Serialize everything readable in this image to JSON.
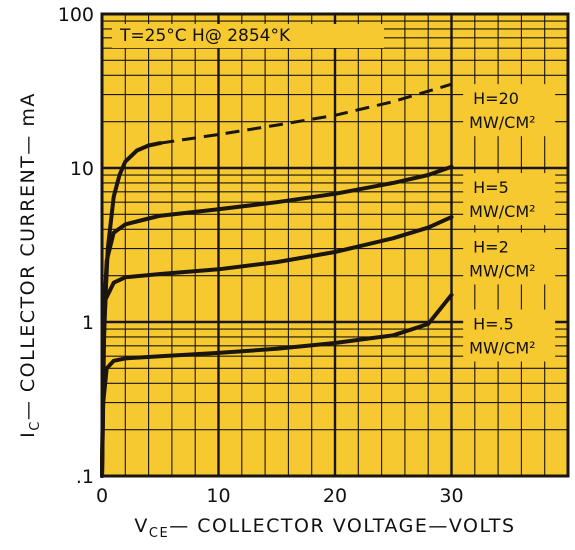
{
  "chart_data": {
    "type": "line",
    "title": "",
    "annotation": "T=25°C   H@ 2854°K",
    "xlabel": "VCE — COLLECTOR VOLTAGE—VOLTS",
    "xlabel_main": "V",
    "xlabel_sub": "CE",
    "xlabel_rest": "— COLLECTOR VOLTAGE—VOLTS",
    "ylabel": "IC— COLLECTOR CURRENT— mA",
    "ylabel_main": "I",
    "ylabel_sub": "C",
    "ylabel_rest": "— COLLECTOR CURRENT— mA",
    "xlim": [
      0,
      40
    ],
    "ylim": [
      0.1,
      100
    ],
    "yscale": "log",
    "grid": true,
    "x_ticks": [
      {
        "value": 0,
        "label": "0"
      },
      {
        "value": 10,
        "label": "10"
      },
      {
        "value": 20,
        "label": "20"
      },
      {
        "value": 30,
        "label": "30"
      }
    ],
    "y_ticks": [
      {
        "value": 0.1,
        "label": ".1"
      },
      {
        "value": 1,
        "label": "1"
      },
      {
        "value": 10,
        "label": "10"
      },
      {
        "value": 100,
        "label": "100"
      }
    ],
    "series": [
      {
        "name": "H=20 MW/CM²",
        "line1": "H=20",
        "line2": "MW/CM²",
        "label_at": [
          31,
          34
        ],
        "solid": [
          [
            0,
            0.1
          ],
          [
            0.2,
            1.0
          ],
          [
            0.5,
            3.0
          ],
          [
            1,
            6.5
          ],
          [
            1.5,
            9.0
          ],
          [
            2,
            11
          ],
          [
            3,
            13
          ],
          [
            4,
            14
          ],
          [
            5,
            14.5
          ]
        ],
        "dashed": [
          [
            5,
            14.5
          ],
          [
            10,
            16.5
          ],
          [
            15,
            19
          ],
          [
            20,
            22
          ],
          [
            25,
            27
          ],
          [
            30,
            35
          ]
        ]
      },
      {
        "name": "H=5 MW/CM²",
        "line1": "H=5",
        "line2": "MW/CM²",
        "label_at": [
          31,
          9
        ],
        "solid": [
          [
            0,
            0.1
          ],
          [
            0.15,
            1.0
          ],
          [
            0.4,
            2.5
          ],
          [
            1,
            3.8
          ],
          [
            2,
            4.3
          ],
          [
            4,
            4.7
          ],
          [
            5,
            4.9
          ],
          [
            10,
            5.4
          ],
          [
            15,
            6.0
          ],
          [
            20,
            6.8
          ],
          [
            25,
            8.0
          ],
          [
            28,
            9.0
          ],
          [
            30,
            10.2
          ]
        ]
      },
      {
        "name": "H=2 MW/CM²",
        "line1": "H=2",
        "line2": "MW/CM²",
        "label_at": [
          31,
          3.7
        ],
        "solid": [
          [
            0,
            0.1
          ],
          [
            0.1,
            0.6
          ],
          [
            0.3,
            1.4
          ],
          [
            1,
            1.8
          ],
          [
            2,
            1.95
          ],
          [
            5,
            2.05
          ],
          [
            10,
            2.2
          ],
          [
            15,
            2.45
          ],
          [
            20,
            2.85
          ],
          [
            25,
            3.5
          ],
          [
            28,
            4.1
          ],
          [
            30,
            4.8
          ]
        ]
      },
      {
        "name": "H=.5 MW/CM²",
        "line1": "H=.5",
        "line2": "MW/CM²",
        "label_at": [
          31,
          1.17
        ],
        "solid": [
          [
            0,
            0.1
          ],
          [
            0.1,
            0.3
          ],
          [
            0.4,
            0.5
          ],
          [
            1,
            0.56
          ],
          [
            2,
            0.58
          ],
          [
            5,
            0.6
          ],
          [
            10,
            0.63
          ],
          [
            15,
            0.67
          ],
          [
            20,
            0.73
          ],
          [
            25,
            0.82
          ],
          [
            28,
            0.97
          ],
          [
            30,
            1.5
          ]
        ]
      }
    ]
  },
  "colors": {
    "plot_background": "#f6c930",
    "grid_and_curves": "#1a1510",
    "page_background": "#ffffff"
  }
}
